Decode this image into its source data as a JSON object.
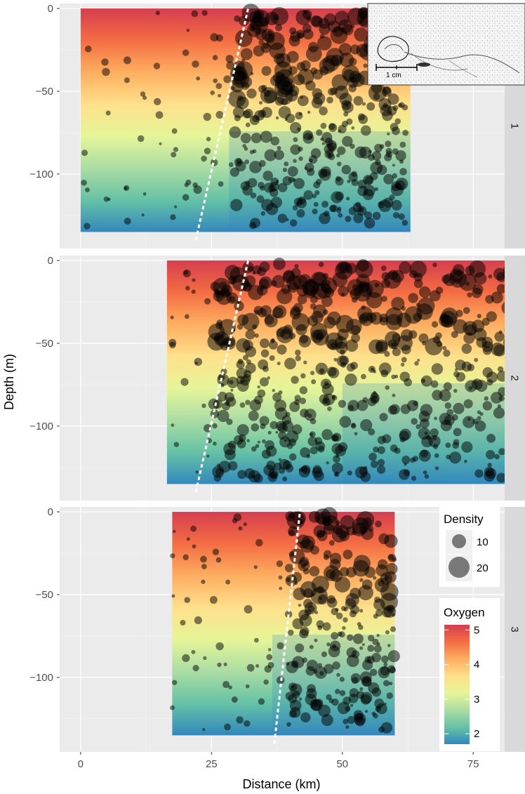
{
  "chart_data": {
    "type": "scatter",
    "subtype": "faceted bubble plot over oxygen heatmap sections",
    "xlabel": "Distance (km)",
    "ylabel": "Depth (m)",
    "x_ticks": [
      0,
      25,
      50,
      75
    ],
    "y_ticks": [
      0,
      -50,
      -100
    ],
    "xlim": [
      -4,
      81
    ],
    "ylim": [
      -145,
      3
    ],
    "grid": true,
    "panels": [
      {
        "strip_label": "1",
        "oxygen_extent_x": [
          0,
          63
        ],
        "oxygen_extent_depth": [
          -135,
          0
        ],
        "front_line": {
          "x": [
            22,
            32
          ],
          "depth": [
            -140,
            0
          ]
        },
        "station_x": [
          1,
          5,
          9,
          12,
          15,
          18,
          20,
          22,
          24,
          25.5,
          27,
          28.5,
          30,
          31.5,
          33,
          34.5,
          36,
          37.5,
          39,
          40.5,
          42,
          43.5,
          45,
          46.5,
          48,
          49.5,
          51,
          52.5,
          54,
          55.5,
          57,
          58.5,
          60,
          61.5
        ]
      },
      {
        "strip_label": "2",
        "oxygen_extent_x": [
          16.5,
          91
        ],
        "oxygen_extent_depth": [
          -135,
          0
        ],
        "front_line": {
          "x": [
            22,
            32
          ],
          "depth": [
            -140,
            0
          ]
        },
        "station_x": [
          18,
          20,
          22,
          24,
          26,
          27.5,
          29,
          30.5,
          32,
          33.5,
          35,
          36.5,
          38,
          39.5,
          41,
          42.5,
          44,
          45.5,
          47,
          48.5,
          50,
          52,
          54,
          56,
          58,
          60,
          62,
          64,
          66,
          68,
          70,
          72,
          74,
          76,
          78,
          80,
          82,
          84,
          86,
          88
        ]
      },
      {
        "strip_label": "3",
        "oxygen_extent_x": [
          17.5,
          60
        ],
        "oxygen_extent_depth": [
          -135,
          0
        ],
        "front_line": {
          "x": [
            37,
            42
          ],
          "depth": [
            -140,
            3
          ]
        },
        "station_x": [
          18,
          20,
          22,
          24,
          26,
          28,
          30,
          32,
          34,
          36,
          38,
          40,
          41.5,
          43,
          44.5,
          46,
          47.5,
          49,
          50.5,
          52,
          53.5,
          55,
          56.5,
          58,
          59.5
        ]
      }
    ],
    "size_legend": {
      "title": "Density",
      "values": [
        10,
        20
      ]
    },
    "color_legend": {
      "title": "Oxygen",
      "ticks": [
        5,
        4,
        3,
        2
      ],
      "range": [
        1.7,
        5.15
      ],
      "colors": [
        "#3288bd",
        "#66c2a5",
        "#abdda4",
        "#e6f598",
        "#fee08b",
        "#fdae61",
        "#f46d43",
        "#d53e4f"
      ]
    },
    "inset": {
      "scale_label": "1 cm"
    }
  },
  "colors": {
    "panel_background": "#ebebeb",
    "grid": "#ffffff",
    "strip_background": "#d9d9d9",
    "bubble": "#000000"
  }
}
